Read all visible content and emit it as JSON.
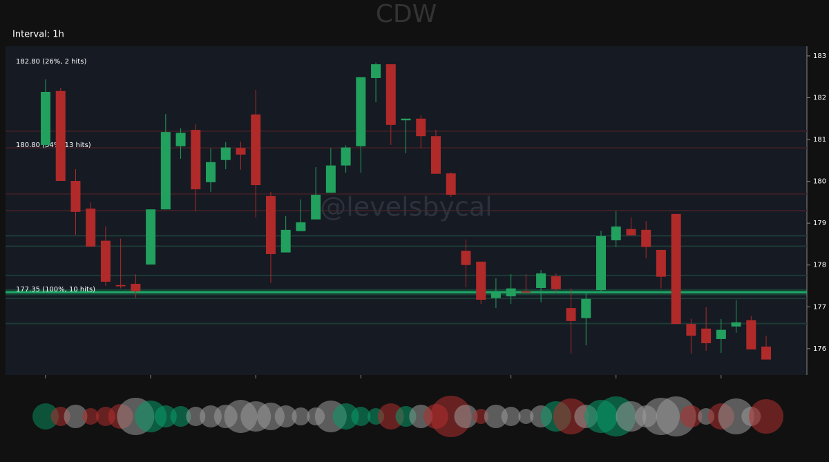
{
  "chart_data": {
    "type": "candlestick",
    "title": "CDW",
    "interval_label": "Interval: 1h",
    "watermark": "@levelsbycal",
    "open": [
      180.87,
      182.16,
      180.01,
      179.35,
      178.58,
      177.52,
      177.55,
      178.01,
      179.33,
      180.84,
      181.23,
      179.98,
      180.51,
      180.8,
      181.6,
      179.65,
      178.3,
      178.81,
      179.09,
      179.73,
      180.38,
      180.84,
      182.47,
      182.8,
      181.46,
      181.5,
      181.08,
      180.19,
      178.34,
      178.08,
      177.21,
      177.25,
      177.37,
      177.45,
      177.73,
      176.97,
      176.73,
      177.4,
      178.59,
      178.86,
      178.84,
      178.36,
      179.22,
      176.59,
      176.48,
      176.23,
      176.53,
      176.68,
      176.05
    ],
    "high": [
      182.44,
      182.24,
      180.29,
      179.5,
      178.92,
      178.63,
      177.78,
      179.33,
      181.61,
      181.27,
      181.37,
      180.79,
      180.94,
      180.95,
      182.19,
      179.75,
      179.17,
      179.57,
      180.34,
      180.8,
      180.86,
      182.49,
      182.84,
      182.8,
      181.5,
      181.58,
      181.23,
      180.22,
      178.61,
      178.08,
      177.68,
      177.78,
      177.78,
      177.88,
      177.8,
      177.44,
      177.34,
      178.82,
      179.29,
      179.14,
      179.05,
      178.36,
      179.22,
      176.71,
      176.99,
      176.71,
      177.16,
      176.78,
      176.31
    ],
    "low": [
      180.79,
      180.01,
      178.72,
      178.44,
      177.5,
      177.44,
      177.21,
      178.01,
      179.33,
      180.54,
      179.29,
      179.75,
      180.29,
      180.28,
      179.14,
      177.57,
      178.3,
      178.81,
      179.09,
      179.73,
      180.21,
      180.21,
      181.89,
      180.87,
      180.67,
      180.79,
      180.18,
      179.63,
      177.47,
      177.07,
      176.97,
      177.07,
      177.34,
      177.11,
      177.34,
      175.88,
      176.08,
      177.34,
      178.43,
      178.71,
      178.16,
      177.44,
      176.59,
      175.88,
      175.95,
      175.9,
      176.38,
      175.98,
      175.74
    ],
    "close": [
      182.14,
      180.01,
      179.27,
      178.44,
      177.6,
      177.49,
      177.37,
      179.33,
      181.18,
      181.16,
      179.81,
      180.46,
      180.81,
      180.64,
      179.91,
      178.26,
      178.84,
      179.02,
      179.68,
      180.38,
      180.81,
      182.49,
      182.8,
      181.35,
      181.5,
      181.08,
      180.18,
      179.68,
      178.0,
      177.17,
      177.34,
      177.44,
      177.34,
      177.8,
      177.42,
      176.66,
      177.19,
      178.69,
      178.92,
      178.71,
      178.43,
      177.72,
      176.59,
      176.31,
      176.13,
      176.45,
      176.63,
      175.98,
      175.74
    ],
    "up_color": "#22a05e",
    "down_color": "#b02a2a",
    "ylim": [
      175.37,
      183.23
    ],
    "yticks": [
      176,
      177,
      178,
      179,
      180,
      181,
      182,
      183
    ],
    "levels": [
      {
        "price": 182.8,
        "label": "182.80 (26%, 2 hits)",
        "color": "#24242c"
      },
      {
        "price": 181.2,
        "color": "#3a1f26"
      },
      {
        "price": 180.8,
        "label": "180.80 (54%, 13 hits)",
        "color": "#3a1f26"
      },
      {
        "price": 179.7,
        "color": "#3a1f26"
      },
      {
        "price": 179.3,
        "color": "#3a1f26"
      },
      {
        "price": 178.7,
        "color": "#1d3b36"
      },
      {
        "price": 178.45,
        "color": "#1d3b36"
      },
      {
        "price": 177.75,
        "color": "#1d3b36"
      },
      {
        "price": 177.35,
        "label": "177.35 (100%, 10 hits)",
        "color": "#1fa866",
        "highlight": true
      },
      {
        "price": 177.2,
        "color": "#1d3b36"
      },
      {
        "price": 176.6,
        "color": "#1d3b36"
      }
    ],
    "volume_sizes": [
      19,
      14,
      17,
      12,
      14,
      18,
      27,
      23,
      16,
      15,
      14,
      16,
      17,
      24,
      22,
      20,
      16,
      13,
      13,
      23,
      19,
      14,
      12,
      19,
      15,
      17,
      18,
      30,
      17,
      11,
      17,
      14,
      11,
      16,
      22,
      26,
      17,
      24,
      29,
      22,
      16,
      27,
      29,
      16,
      12,
      19,
      26,
      14,
      25
    ],
    "volume_colors": [
      "#0a8a5c",
      "#b03030",
      "#9a9a9a",
      "#b03030",
      "#b03030",
      "#b03030",
      "#9a9a9a",
      "#0a9a6a",
      "#0a9a6a",
      "#0a9a6a",
      "#9a9a9a",
      "#9a9a9a",
      "#9a9a9a",
      "#9a9a9a",
      "#9a9a9a",
      "#9a9a9a",
      "#9a9a9a",
      "#9a9a9a",
      "#9a9a9a",
      "#9a9a9a",
      "#0a9a6a",
      "#0a9a6a",
      "#0a9a6a",
      "#b03030",
      "#0a9a6a",
      "#9a9a9a",
      "#b03030",
      "#b03030",
      "#9a9a9a",
      "#b03030",
      "#9a9a9a",
      "#9a9a9a",
      "#9a9a9a",
      "#9a9a9a",
      "#0a9a6a",
      "#b03030",
      "#9a9a9a",
      "#0a9a6a",
      "#0a9a6a",
      "#9a9a9a",
      "#9a9a9a",
      "#9a9a9a",
      "#9a9a9a",
      "#b03030",
      "#9a9a9a",
      "#b03030",
      "#9a9a9a",
      "#9a9a9a",
      "#b03030"
    ]
  }
}
